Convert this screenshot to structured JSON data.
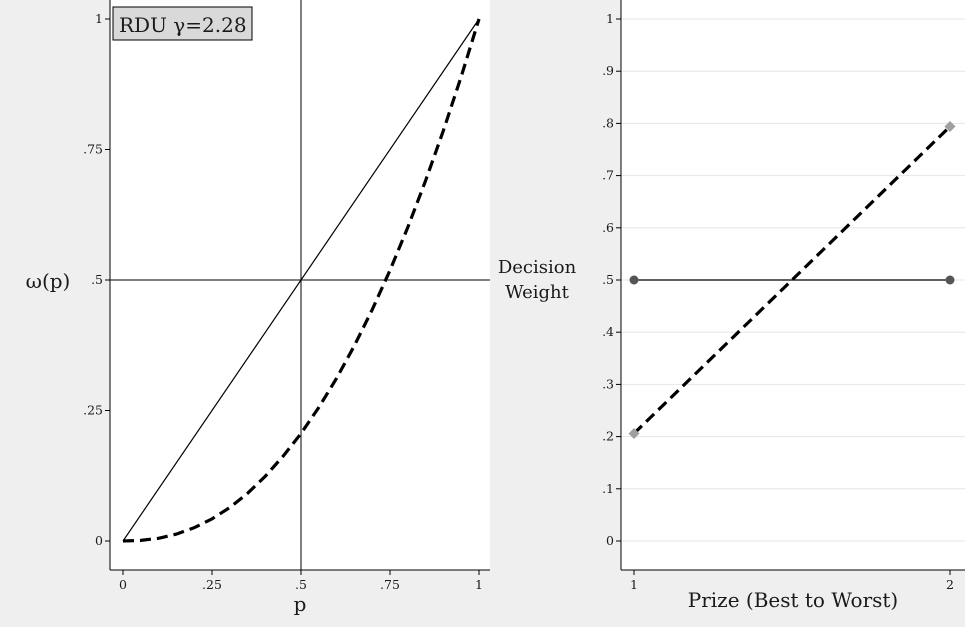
{
  "chart_data": [
    {
      "type": "line",
      "title": "",
      "xlabel": "p",
      "ylabel": "ω(p)",
      "xlim": [
        0,
        1
      ],
      "ylim": [
        0,
        1
      ],
      "x_ticks": [
        "0",
        ".25",
        ".5",
        ".75",
        "1"
      ],
      "x_tick_values": [
        0,
        0.25,
        0.5,
        0.75,
        1
      ],
      "y_ticks": [
        "0",
        ".25",
        ".5",
        ".75",
        "1"
      ],
      "y_tick_values": [
        0,
        0.25,
        0.5,
        0.75,
        1
      ],
      "grid": false,
      "reference_lines": {
        "vertical_x": 0.5,
        "horizontal_y": 0.5
      },
      "annotation": "RDU γ=2.28",
      "gamma": 2.28,
      "series": [
        {
          "style": "solid",
          "color": "#000000",
          "x": [
            0,
            1
          ],
          "y": [
            0,
            1
          ]
        },
        {
          "style": "dashed",
          "color": "#000000",
          "x": [
            0,
            0.05,
            0.1,
            0.15,
            0.2,
            0.25,
            0.3,
            0.35,
            0.4,
            0.45,
            0.5,
            0.55,
            0.6,
            0.65,
            0.7,
            0.75,
            0.8,
            0.85,
            0.9,
            0.95,
            1
          ],
          "y": [
            0,
            0.0011,
            0.0052,
            0.0133,
            0.0255,
            0.0423,
            0.0642,
            0.0914,
            0.1244,
            0.1627,
            0.2059,
            0.2559,
            0.3119,
            0.3743,
            0.4431,
            0.5186,
            0.601,
            0.6904,
            0.7864,
            0.8897,
            1
          ]
        }
      ]
    },
    {
      "type": "line",
      "title": "",
      "xlabel": "Prize (Best to Worst)",
      "ylabel_lines": [
        "Decision",
        "Weight"
      ],
      "xlim": [
        1,
        2
      ],
      "ylim": [
        0,
        1
      ],
      "x_ticks": [
        "1",
        "2"
      ],
      "x_tick_values": [
        1,
        2
      ],
      "y_ticks": [
        "0",
        ".1",
        ".2",
        ".3",
        ".4",
        ".5",
        ".6",
        ".7",
        ".8",
        ".9",
        "1"
      ],
      "y_tick_values": [
        0,
        0.1,
        0.2,
        0.3,
        0.4,
        0.5,
        0.6,
        0.7,
        0.8,
        0.9,
        1
      ],
      "grid": true,
      "series": [
        {
          "style": "solid",
          "color": "#000000",
          "marker": "circle",
          "marker_color": "#555555",
          "x": [
            1,
            2
          ],
          "y": [
            0.5,
            0.5
          ]
        },
        {
          "style": "dashed",
          "color": "#000000",
          "marker": "diamond",
          "marker_color": "#a0a0a0",
          "x": [
            1,
            2
          ],
          "y": [
            0.206,
            0.794
          ]
        }
      ]
    }
  ]
}
